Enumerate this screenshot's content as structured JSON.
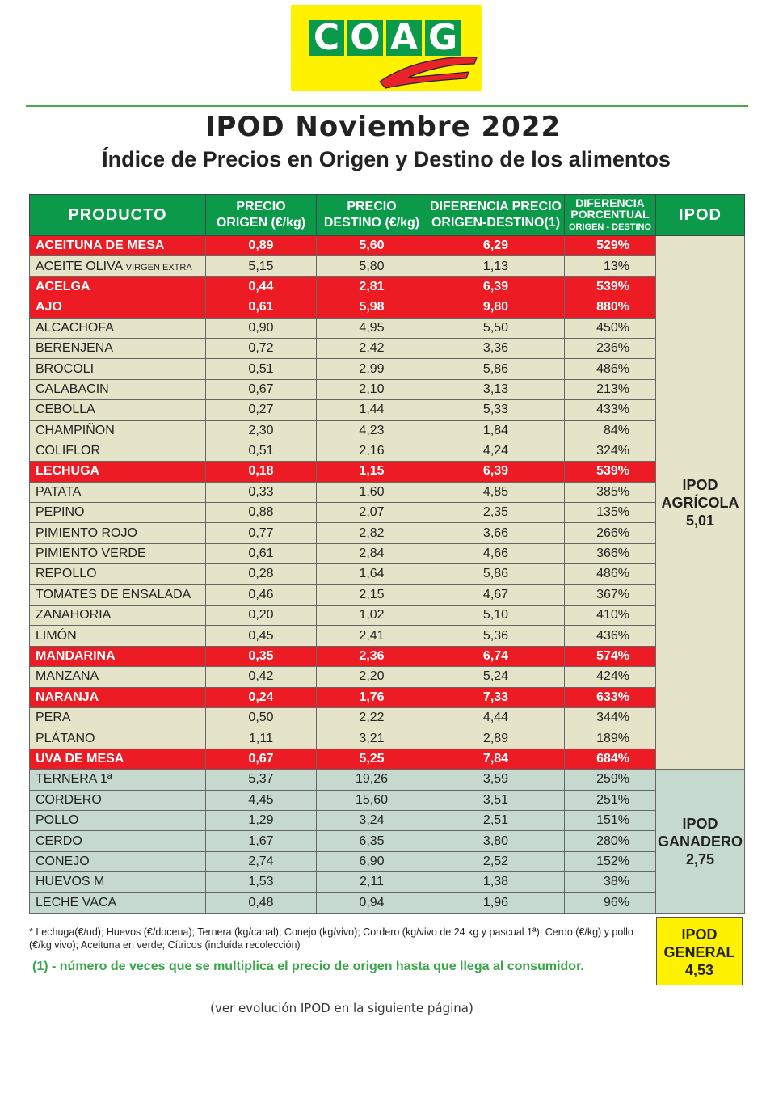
{
  "logo": {
    "text": "COAG"
  },
  "title": "IPOD Noviembre 2022",
  "subtitle": "Índice de Precios en Origen y Destino de los alimentos",
  "headers": {
    "producto": "PRODUCTO",
    "origen": [
      "PRECIO",
      "ORIGEN (€/kg)"
    ],
    "destino": [
      "PRECIO",
      "DESTINO (€/kg)"
    ],
    "diferencia": [
      "DIFERENCIA PRECIO",
      "ORIGEN-DESTINO(1)"
    ],
    "porcentual": [
      "DIFERENCIA",
      "PORCENTUAL",
      "ORIGEN - DESTINO"
    ],
    "ipod": "IPOD"
  },
  "agricola": {
    "label": [
      "IPOD",
      "AGRÍCOLA",
      "5,01"
    ],
    "rows": [
      {
        "producto": "ACEITUNA  DE MESA",
        "origen": "0,89",
        "destino": "5,60",
        "diferencia": "6,29",
        "porcentual": "529%",
        "highlight": true
      },
      {
        "producto": "ACEITE OLIVA",
        "sub": "VIRGEN EXTRA",
        "origen": "5,15",
        "destino": "5,80",
        "diferencia": "1,13",
        "porcentual": "13%",
        "highlight": false
      },
      {
        "producto": "ACELGA",
        "origen": "0,44",
        "destino": "2,81",
        "diferencia": "6,39",
        "porcentual": "539%",
        "highlight": true
      },
      {
        "producto": "AJO",
        "origen": "0,61",
        "destino": "5,98",
        "diferencia": "9,80",
        "porcentual": "880%",
        "highlight": true
      },
      {
        "producto": "ALCACHOFA",
        "origen": "0,90",
        "destino": "4,95",
        "diferencia": "5,50",
        "porcentual": "450%",
        "highlight": false
      },
      {
        "producto": "BERENJENA",
        "origen": "0,72",
        "destino": "2,42",
        "diferencia": "3,36",
        "porcentual": "236%",
        "highlight": false
      },
      {
        "producto": "BROCOLI",
        "origen": "0,51",
        "destino": "2,99",
        "diferencia": "5,86",
        "porcentual": "486%",
        "highlight": false
      },
      {
        "producto": "CALABACIN",
        "origen": "0,67",
        "destino": "2,10",
        "diferencia": "3,13",
        "porcentual": "213%",
        "highlight": false
      },
      {
        "producto": "CEBOLLA",
        "origen": "0,27",
        "destino": "1,44",
        "diferencia": "5,33",
        "porcentual": "433%",
        "highlight": false
      },
      {
        "producto": "CHAMPIÑON",
        "origen": "2,30",
        "destino": "4,23",
        "diferencia": "1,84",
        "porcentual": "84%",
        "highlight": false
      },
      {
        "producto": "COLIFLOR",
        "origen": "0,51",
        "destino": "2,16",
        "diferencia": "4,24",
        "porcentual": "324%",
        "highlight": false
      },
      {
        "producto": "LECHUGA",
        "origen": "0,18",
        "destino": "1,15",
        "diferencia": "6,39",
        "porcentual": "539%",
        "highlight": true
      },
      {
        "producto": "PATATA",
        "origen": "0,33",
        "destino": "1,60",
        "diferencia": "4,85",
        "porcentual": "385%",
        "highlight": false
      },
      {
        "producto": "PEPINO",
        "origen": "0,88",
        "destino": "2,07",
        "diferencia": "2,35",
        "porcentual": "135%",
        "highlight": false
      },
      {
        "producto": "PIMIENTO ROJO",
        "origen": "0,77",
        "destino": "2,82",
        "diferencia": "3,66",
        "porcentual": "266%",
        "highlight": false
      },
      {
        "producto": "PIMIENTO VERDE",
        "origen": "0,61",
        "destino": "2,84",
        "diferencia": "4,66",
        "porcentual": "366%",
        "highlight": false
      },
      {
        "producto": "REPOLLO",
        "origen": "0,28",
        "destino": "1,64",
        "diferencia": "5,86",
        "porcentual": "486%",
        "highlight": false
      },
      {
        "producto": "TOMATES DE ENSALADA",
        "origen": "0,46",
        "destino": "2,15",
        "diferencia": "4,67",
        "porcentual": "367%",
        "highlight": false
      },
      {
        "producto": "ZANAHORIA",
        "origen": "0,20",
        "destino": "1,02",
        "diferencia": "5,10",
        "porcentual": "410%",
        "highlight": false
      },
      {
        "producto": "LIMÓN",
        "origen": "0,45",
        "destino": "2,41",
        "diferencia": "5,36",
        "porcentual": "436%",
        "highlight": false
      },
      {
        "producto": "MANDARINA",
        "origen": "0,35",
        "destino": "2,36",
        "diferencia": "6,74",
        "porcentual": "574%",
        "highlight": true
      },
      {
        "producto": "MANZANA",
        "origen": "0,42",
        "destino": "2,20",
        "diferencia": "5,24",
        "porcentual": "424%",
        "highlight": false
      },
      {
        "producto": "NARANJA",
        "origen": "0,24",
        "destino": "1,76",
        "diferencia": "7,33",
        "porcentual": "633%",
        "highlight": true
      },
      {
        "producto": "PERA",
        "origen": "0,50",
        "destino": "2,22",
        "diferencia": "4,44",
        "porcentual": "344%",
        "highlight": false
      },
      {
        "producto": "PLÁTANO",
        "origen": "1,11",
        "destino": "3,21",
        "diferencia": "2,89",
        "porcentual": "189%",
        "highlight": false
      },
      {
        "producto": "UVA DE MESA",
        "origen": "0,67",
        "destino": "5,25",
        "diferencia": "7,84",
        "porcentual": "684%",
        "highlight": true
      }
    ]
  },
  "ganadero": {
    "label": [
      "IPOD",
      "GANADERO",
      "2,75"
    ],
    "rows": [
      {
        "producto": "TERNERA 1ª",
        "origen": "5,37",
        "destino": "19,26",
        "diferencia": "3,59",
        "porcentual": "259%"
      },
      {
        "producto": "CORDERO",
        "origen": "4,45",
        "destino": "15,60",
        "diferencia": "3,51",
        "porcentual": "251%"
      },
      {
        "producto": "POLLO",
        "origen": "1,29",
        "destino": "3,24",
        "diferencia": "2,51",
        "porcentual": "151%"
      },
      {
        "producto": "CERDO",
        "origen": "1,67",
        "destino": "6,35",
        "diferencia": "3,80",
        "porcentual": "280%"
      },
      {
        "producto": "CONEJO",
        "origen": "2,74",
        "destino": "6,90",
        "diferencia": "2,52",
        "porcentual": "152%"
      },
      {
        "producto": "HUEVOS M",
        "origen": "1,53",
        "destino": "2,11",
        "diferencia": "1,38",
        "porcentual": "38%"
      },
      {
        "producto": "LECHE VACA",
        "origen": "0,48",
        "destino": "0,94",
        "diferencia": "1,96",
        "porcentual": "96%"
      }
    ]
  },
  "general": [
    "IPOD",
    "GENERAL",
    "4,53"
  ],
  "notes": {
    "units": "* Lechuga(€/ud); Huevos (€/docena); Ternera (kg/canal); Conejo (kg/vivo); Cordero (kg/vivo de 24 kg y pascual 1ª); Cerdo (€/kg) y pollo (€/kg vivo); Aceituna en verde; Cítricos (incluída recolección)",
    "footnote": "(1) - número de veces que se multiplica el precio de origen hasta que llega al consumidor.",
    "next_page": "(ver evolución IPOD en la siguiente página)"
  },
  "colors": {
    "header_green": "#0a9a4a",
    "highlight_red": "#ed1c24",
    "agricola_bg": "#e6e4c8",
    "ganadero_bg": "#c5d9cf",
    "general_yellow": "#fff200"
  }
}
